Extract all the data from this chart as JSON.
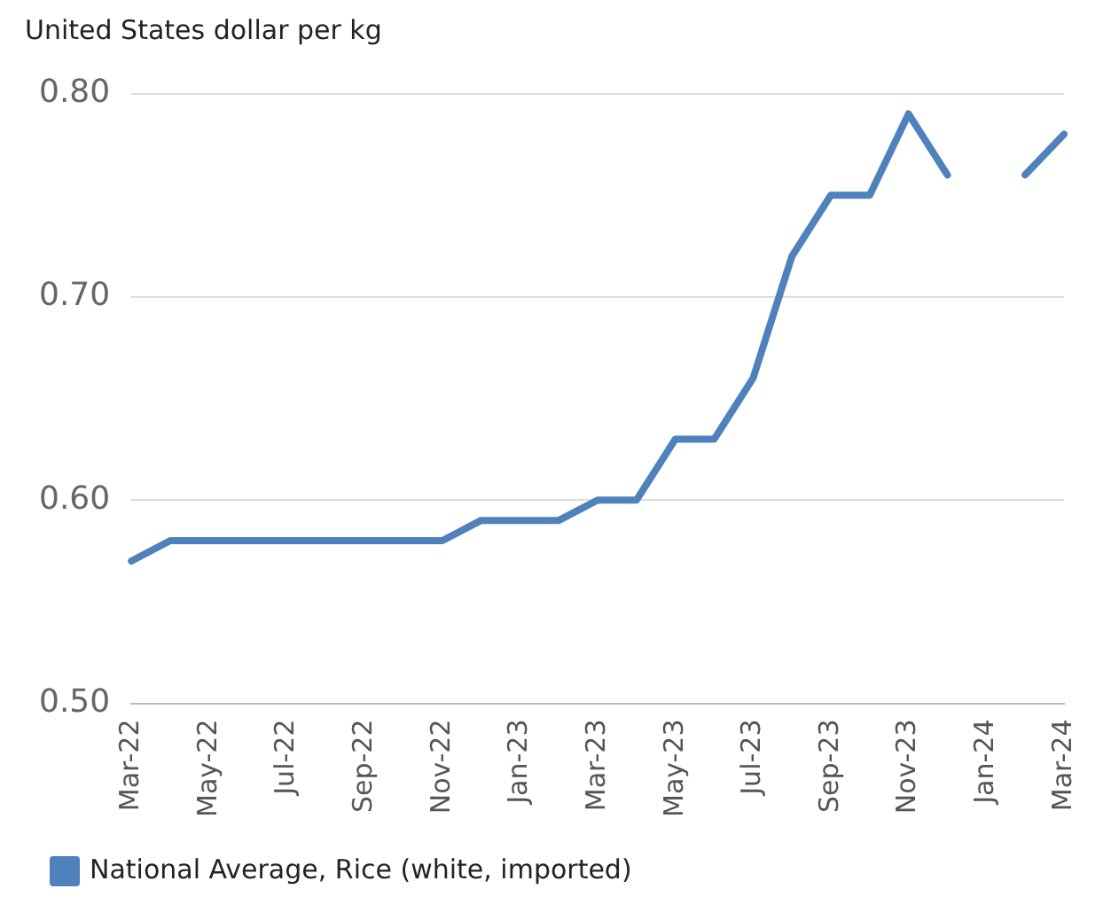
{
  "chart_data": {
    "type": "line",
    "ylabel": "United States dollar per kg",
    "categories": [
      "Mar-22",
      null,
      "May-22",
      null,
      "Jul-22",
      null,
      "Sep-22",
      null,
      "Nov-22",
      null,
      "Jan-23",
      null,
      "Mar-23",
      null,
      "May-23",
      null,
      "Jul-23",
      null,
      "Sep-23",
      null,
      "Nov-23",
      null,
      "Jan-24",
      null,
      "Mar-24"
    ],
    "series": [
      {
        "name": "National Average, Rice (white, imported)",
        "color": "#4f81bd",
        "values": [
          0.57,
          0.58,
          0.58,
          0.58,
          0.58,
          0.58,
          0.58,
          0.58,
          0.58,
          0.59,
          0.59,
          0.59,
          0.6,
          0.6,
          0.63,
          0.63,
          0.66,
          0.72,
          0.75,
          0.75,
          0.79,
          0.76,
          null,
          0.76,
          0.78
        ]
      }
    ],
    "ylim": [
      0.5,
      0.8
    ],
    "yticks": [
      {
        "value": 0.5,
        "label": "0.50"
      },
      {
        "value": 0.6,
        "label": "0.60"
      },
      {
        "value": 0.7,
        "label": "0.70"
      },
      {
        "value": 0.8,
        "label": "0.80"
      }
    ],
    "grid": "y",
    "legend": "bottom left",
    "marker": "none",
    "line_style": "solid"
  }
}
